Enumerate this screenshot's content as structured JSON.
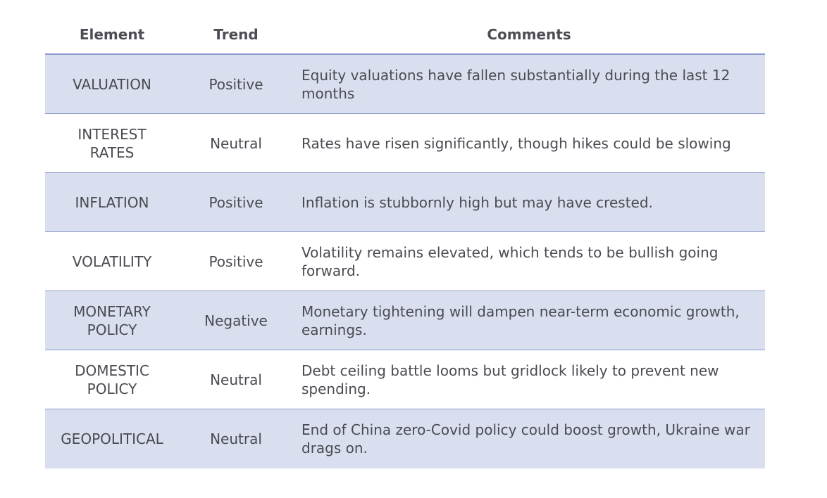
{
  "table": {
    "headers": {
      "element": "Element",
      "trend": "Trend",
      "comments": "Comments"
    },
    "rows": [
      {
        "element": "VALUATION",
        "trend": "Positive",
        "comment": "Equity valuations have fallen substantially during the last 12 months"
      },
      {
        "element": "INTEREST RATES",
        "trend": "Neutral",
        "comment": "Rates have risen significantly, though hikes could be slowing"
      },
      {
        "element": "INFLATION",
        "trend": "Positive",
        "comment": "Inflation is stubbornly high but may have crested."
      },
      {
        "element": "VOLATILITY",
        "trend": "Positive",
        "comment": "Volatility remains elevated, which tends to be bullish going forward."
      },
      {
        "element": "MONETARY POLICY",
        "trend": "Negative",
        "comment": "Monetary tightening will dampen near-term economic growth, earnings."
      },
      {
        "element": "DOMESTIC POLICY",
        "trend": "Neutral",
        "comment": "Debt ceiling battle looms but gridlock likely to prevent new spending."
      },
      {
        "element": "GEOPOLITICAL",
        "trend": "Neutral",
        "comment": "End of China zero-Covid policy could boost growth, Ukraine war drags on."
      }
    ]
  },
  "colors": {
    "row_shade": "#d9dfef",
    "rule": "#8a9acb",
    "text": "#4a4a52"
  }
}
